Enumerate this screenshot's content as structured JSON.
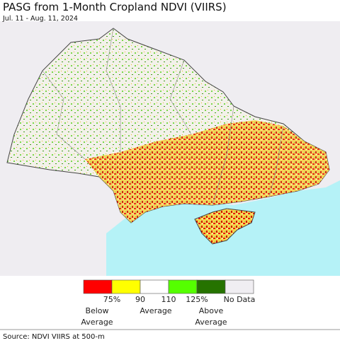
{
  "title": "PASG from 1-Month Cropland NDVI (VIIRS)",
  "subtitle": "Jul. 11 - Aug. 11, 2024",
  "legend": {
    "colors": [
      "#ff0000",
      "#ffff00",
      "#ffffff",
      "#55ff00",
      "#267300",
      "#f0eef2"
    ],
    "ticks": [
      "75%",
      "90",
      "110",
      "125%",
      "No Data"
    ],
    "groups": [
      "Below Average",
      "Average",
      "Above Average"
    ]
  },
  "source": "Source: NDVI VIIRS at 500-m"
}
